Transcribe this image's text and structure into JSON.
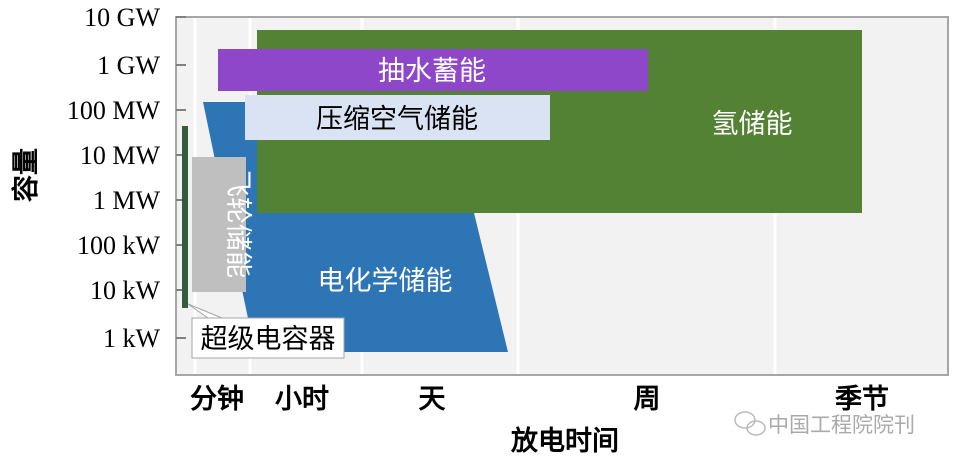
{
  "chart_data": {
    "type": "bar",
    "orientation": "floating-range",
    "xlabel": "放电时间",
    "ylabel": "容量",
    "x_categories": [
      "分钟",
      "小时",
      "天",
      "周",
      "季节"
    ],
    "y_ticks": [
      "10 GW",
      "1 GW",
      "100 MW",
      "10 MW",
      "1 MW",
      "100 kW",
      "10 kW",
      "1 kW"
    ],
    "y_scale": "log",
    "grid": "vertical",
    "series": [
      {
        "name": "氢储能",
        "color": "#548235",
        "discharge_time": [
          "小时",
          "季节"
        ],
        "capacity": [
          "1 MW",
          "10 GW"
        ]
      },
      {
        "name": "抽水蓄能",
        "color": "#8e47c9",
        "discharge_time": [
          "分钟",
          "周"
        ],
        "capacity": [
          "300 MW",
          "3 GW"
        ]
      },
      {
        "name": "压缩空气储能",
        "color": "#dae3f3",
        "discharge_time": [
          "小时",
          "天"
        ],
        "capacity": [
          "30 MW",
          "300 MW"
        ]
      },
      {
        "name": "电化学储能",
        "color": "#2e75b6",
        "discharge_time": [
          "分钟",
          "天"
        ],
        "capacity": [
          "1 kW",
          "100 MW"
        ]
      },
      {
        "name": "飞轮储能",
        "color": "#bfbfbf",
        "discharge_time": [
          "分钟",
          "小时"
        ],
        "capacity": [
          "10 kW",
          "10 MW"
        ]
      },
      {
        "name": "超级电容器",
        "color": "#375a3f",
        "discharge_time": [
          "分钟",
          "分钟"
        ],
        "capacity": [
          "5 kW",
          "50 MW"
        ]
      }
    ]
  },
  "watermark": "中国工程院院刊"
}
